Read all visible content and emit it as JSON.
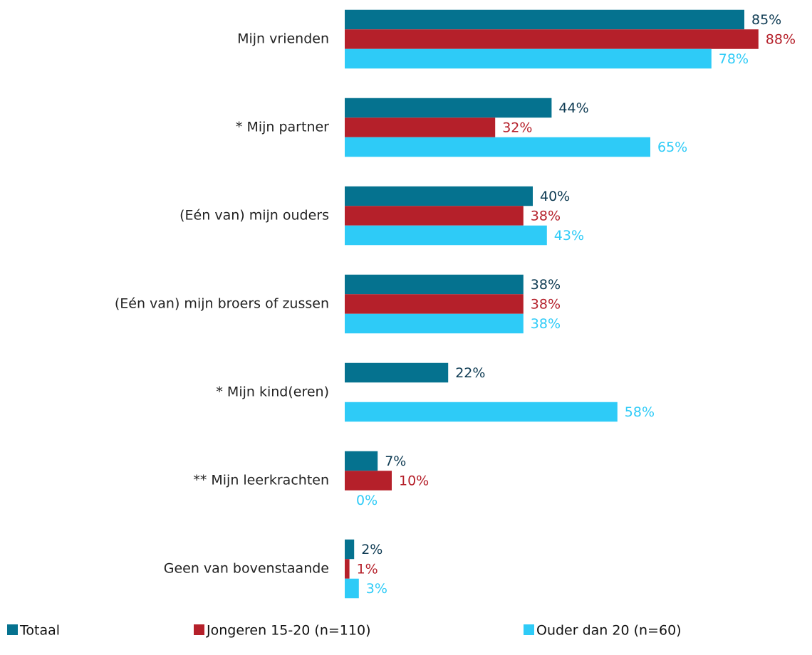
{
  "chart_data": {
    "type": "hbar",
    "categories": [
      "Mijn vrienden",
      "* Mijn partner",
      "(Eén van) mijn ouders",
      "(Eén van) mijn broers of zussen",
      "* Mijn kind(eren)",
      "** Mijn leerkrachten",
      "Geen van bovenstaande"
    ],
    "series": [
      {
        "name": "Totaal",
        "color": "#05728f",
        "label_color": "#0d3a52",
        "values": [
          85,
          44,
          40,
          38,
          22,
          7,
          2
        ],
        "value_labels": [
          "85%",
          "44%",
          "40%",
          "38%",
          "22%",
          "7%",
          "2%"
        ]
      },
      {
        "name": "Jongeren 15-20 (n=110)",
        "color": "#b5202a",
        "label_color": "#b5202a",
        "values": [
          88,
          32,
          38,
          38,
          null,
          10,
          1
        ],
        "value_labels": [
          "88%",
          "32%",
          "38%",
          "38%",
          null,
          "10%",
          "1%"
        ]
      },
      {
        "name": "Ouder dan 20 (n=60)",
        "color": "#2ecbf7",
        "label_color": "#2ecbf7",
        "values": [
          78,
          65,
          43,
          38,
          58,
          0,
          3
        ],
        "value_labels": [
          "78%",
          "65%",
          "43%",
          "38%",
          "58%",
          "0%",
          "3%"
        ]
      }
    ]
  }
}
